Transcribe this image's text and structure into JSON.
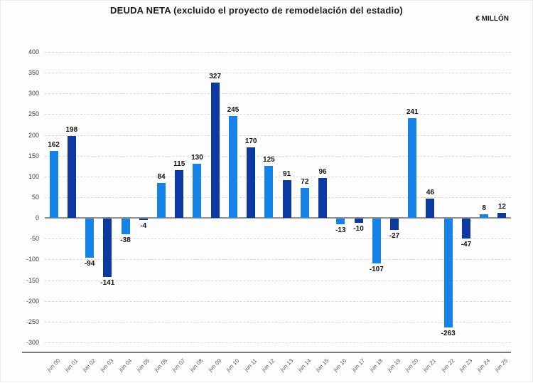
{
  "header": {
    "title": "DEUDA NETA (excluido el proyecto de remodelación del estadio)",
    "unit_label": "€ MILLÓN"
  },
  "chart_data": {
    "type": "bar",
    "title": "DEUDA NETA (excluido el proyecto de remodelación del estadio)",
    "unit": "€ MILLÓN",
    "categories": [
      "jun 00",
      "jun 01",
      "jun 02",
      "jun 03",
      "jun 04",
      "jun 05",
      "jun 06",
      "jun 07",
      "jun 08",
      "jun 09",
      "jun 10",
      "jun 11",
      "jun 12",
      "jun 13",
      "jun 14",
      "jun 15",
      "jun 16",
      "jun 17",
      "jun 18",
      "jun 19",
      "jun 20",
      "jun 21",
      "jun 22",
      "jun 23",
      "jun 24",
      "jun 25"
    ],
    "values": [
      162,
      198,
      -94,
      -141,
      -38,
      -4,
      84,
      115,
      130,
      327,
      245,
      170,
      125,
      91,
      72,
      96,
      -13,
      -10,
      -107,
      -27,
      241,
      46,
      -263,
      -47,
      8,
      12
    ],
    "xlabel": "",
    "ylabel": "",
    "ylim": [
      -300,
      400
    ],
    "ytick_step": 50,
    "grid": "horizontal-dashed",
    "legend_position": "none",
    "colors": {
      "bar_even_years": "#1583E8",
      "bar_odd_years": "#0C3AA2",
      "gridline": "#d9d9d9",
      "zero_line": "#8f8f8f",
      "value_label": "#141414"
    }
  }
}
